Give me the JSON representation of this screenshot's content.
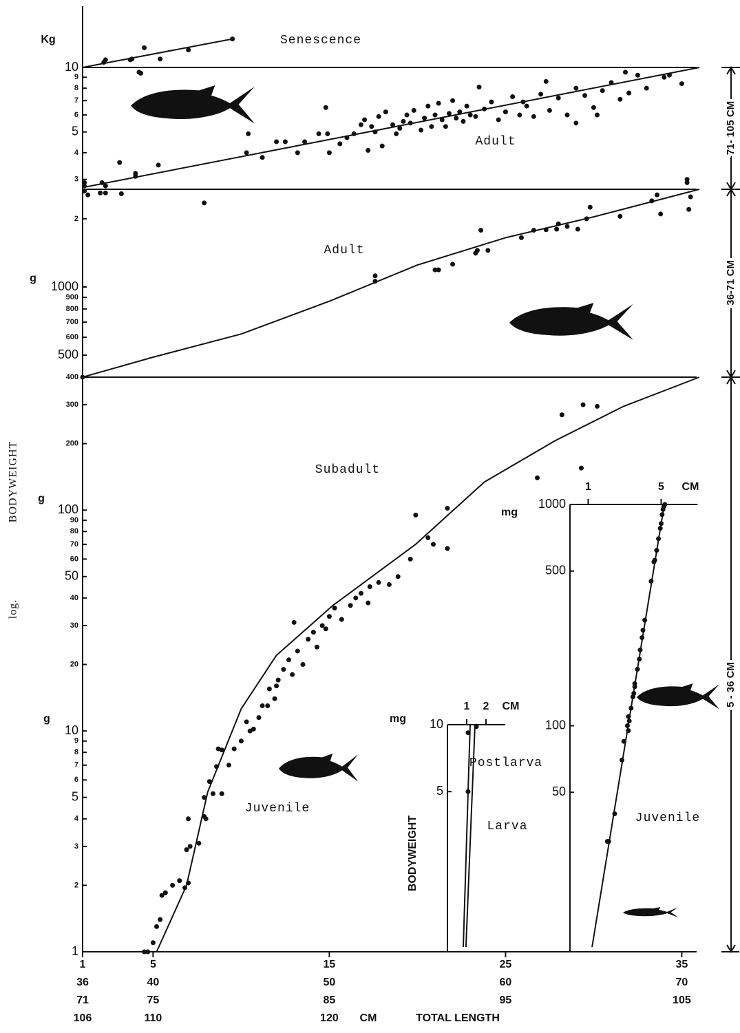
{
  "y_label": "BODYWEIGHT",
  "log_label": "log.",
  "x_axis": {
    "xlim": [
      1,
      36
    ],
    "xticks": [
      1,
      5,
      15,
      25,
      35
    ],
    "label_rows": [
      [
        36,
        40,
        50,
        60,
        70
      ],
      [
        71,
        75,
        85,
        95,
        105
      ],
      [
        106,
        110,
        120
      ]
    ],
    "unit": "CM",
    "label": "TOTAL LENGTH"
  },
  "ranges": [
    "71- 105 CM",
    "36-71 CM",
    "5 - 36 CM"
  ],
  "chart_data": [
    {
      "type": "scatter",
      "log_y": true,
      "color": "#111111",
      "ylim": [
        10,
        20
      ],
      "yticks": [],
      "labels": [
        "Senescence"
      ],
      "x": [
        2.2,
        2.3,
        3.7,
        3.8,
        4.5,
        5.4,
        7.0,
        9.5
      ],
      "y": [
        10.6,
        10.9,
        10.9,
        11.0,
        12.5,
        11.0,
        12.2,
        13.8
      ],
      "fits": [
        {
          "x": [
            1,
            9.5
          ],
          "y": [
            10,
            13.8
          ]
        }
      ]
    },
    {
      "type": "scatter",
      "log_y": true,
      "color": "#111111",
      "ylim": [
        2.7,
        10
      ],
      "yticks": [
        3,
        4,
        5,
        6,
        7,
        8,
        9,
        10
      ],
      "units": [
        "Kg"
      ],
      "labels": [
        "Adult"
      ],
      "x": [
        1.1,
        1.1,
        2.1,
        2.3,
        3.1,
        4.0,
        4.0,
        5.3,
        10.3,
        10.4,
        11.2,
        12.0,
        12.5,
        13.2,
        13.6,
        14.4,
        14.9,
        15.0,
        14.8,
        15.6,
        16.0,
        16.4,
        16.8,
        17.0,
        17.2,
        17.4,
        17.6,
        17.8,
        18.0,
        18.2,
        18.6,
        18.8,
        19.0,
        19.2,
        19.4,
        19.6,
        19.8,
        20.2,
        20.4,
        20.6,
        20.8,
        21.0,
        21.2,
        21.4,
        21.6,
        21.8,
        22.0,
        22.2,
        22.4,
        22.6,
        22.8,
        23.0,
        23.3,
        23.5,
        23.8,
        24.2,
        24.6,
        25.0,
        25.4,
        25.8,
        26.2,
        26.6,
        27.0,
        27.5,
        28.0,
        28.5,
        29.0,
        29.5,
        30.0,
        30.5,
        31.0,
        31.5,
        32.0,
        32.5,
        33.0,
        34.0,
        34.3,
        35.0,
        31.8,
        35.3,
        35.3,
        4.2,
        4.3,
        29.0,
        30.2,
        26.0,
        27.3
      ],
      "y": [
        2.9,
        2.8,
        2.9,
        2.8,
        3.6,
        3.2,
        3.1,
        3.5,
        4.0,
        4.9,
        3.8,
        4.5,
        4.5,
        4.0,
        4.5,
        4.9,
        4.9,
        4.0,
        6.5,
        4.4,
        4.7,
        4.9,
        5.4,
        5.7,
        4.1,
        5.3,
        5.0,
        5.9,
        4.3,
        6.2,
        5.4,
        4.9,
        5.2,
        5.6,
        6.0,
        5.5,
        6.3,
        5.1,
        5.8,
        6.6,
        5.3,
        6.0,
        6.8,
        5.7,
        5.3,
        6.1,
        7.0,
        5.8,
        6.2,
        5.6,
        6.6,
        6.0,
        5.9,
        8.1,
        6.4,
        6.9,
        5.7,
        6.2,
        7.3,
        6.0,
        6.6,
        5.9,
        7.5,
        6.3,
        7.2,
        6.0,
        8.0,
        7.4,
        6.5,
        7.8,
        8.5,
        7.1,
        7.6,
        9.2,
        8.0,
        9.0,
        9.2,
        8.4,
        9.5,
        2.9,
        3.0,
        9.5,
        9.4,
        5.5,
        6.0,
        6.9,
        8.6
      ],
      "fits": [
        {
          "x": [
            1,
            36
          ],
          "y": [
            2.75,
            10
          ]
        }
      ]
    },
    {
      "type": "scatter",
      "log_y": true,
      "color": "#111111",
      "ylim": [
        400,
        2700
      ],
      "yticks": [
        400,
        500,
        600,
        700,
        800,
        900,
        1000,
        {
          "value": 2000,
          "label": "2"
        }
      ],
      "units": [
        "g"
      ],
      "labels": [
        "Adult"
      ],
      "x": [
        1.1,
        1.3,
        2.0,
        2.3,
        3.2,
        7.9,
        17.6,
        17.6,
        21.0,
        21.2,
        22.0,
        23.3,
        23.4,
        23.6,
        24.0,
        25.9,
        26.6,
        27.3,
        27.9,
        28.0,
        28.5,
        29.1,
        29.6,
        29.8,
        31.5,
        33.3,
        33.6,
        33.8,
        35.4,
        35.5,
        1.0
      ],
      "y": [
        2650,
        2550,
        2600,
        2600,
        2580,
        2350,
        1120,
        1060,
        1190,
        1190,
        1260,
        1410,
        1450,
        1780,
        1450,
        1650,
        1780,
        1790,
        1800,
        1900,
        1850,
        1800,
        2000,
        2250,
        2050,
        2400,
        2550,
        2100,
        2200,
        2500,
        400
      ],
      "fits": [
        {
          "x": [
            1,
            5,
            10,
            15,
            20,
            25,
            30,
            36
          ],
          "y": [
            400,
            490,
            620,
            865,
            1250,
            1650,
            2040,
            2700
          ]
        }
      ]
    },
    {
      "type": "scatter",
      "log_y": true,
      "color": "#111111",
      "ylim": [
        1,
        400
      ],
      "yticks": [
        1,
        2,
        3,
        4,
        5,
        6,
        7,
        8,
        9,
        10,
        20,
        30,
        40,
        50,
        60,
        70,
        80,
        90,
        100,
        200,
        300
      ],
      "units": [
        "g",
        "g"
      ],
      "labels": [
        "Subadult",
        "Juvenile"
      ],
      "x": [
        4.5,
        4.7,
        5.0,
        5.2,
        5.4,
        5.5,
        5.7,
        6.1,
        6.5,
        6.8,
        7.0,
        6.9,
        7.1,
        7.0,
        7.6,
        7.9,
        8.0,
        7.9,
        8.2,
        8.4,
        8.6,
        8.9,
        8.7,
        8.9,
        9.3,
        9.6,
        10.0,
        10.3,
        10.7,
        11.0,
        11.2,
        11.6,
        11.9,
        12.1,
        12.4,
        12.7,
        12.9,
        13.2,
        13.5,
        13.8,
        14.1,
        14.3,
        14.6,
        15.0,
        15.3,
        15.7,
        16.2,
        16.8,
        17.3,
        17.8,
        18.4,
        18.9,
        19.6,
        19.9,
        20.6,
        20.9,
        21.7,
        21.7,
        26.8,
        28.2,
        29.4,
        30.2,
        29.3,
        13.0,
        14.8,
        16.5,
        12.0,
        11.5,
        10.5,
        17.2
      ],
      "y": [
        1,
        1,
        1.1,
        1.3,
        1.4,
        1.8,
        1.85,
        2.0,
        2.1,
        1.95,
        2.05,
        2.9,
        3.0,
        4.0,
        3.1,
        4.1,
        4.0,
        5.0,
        5.9,
        5.2,
        6.9,
        5.2,
        8.3,
        8.2,
        7.0,
        8.3,
        9.0,
        11,
        10.2,
        11.5,
        13,
        15.5,
        14,
        17,
        19,
        21,
        18,
        23,
        20,
        26,
        28,
        24,
        30,
        33,
        36,
        32,
        37,
        42,
        45,
        47,
        46,
        50,
        60,
        95,
        75,
        70,
        102,
        67,
        140,
        270,
        300,
        295,
        155,
        31,
        29,
        40,
        16,
        13,
        10,
        38
      ],
      "fits": [
        {
          "x": [
            5.2,
            6.9,
            8.1,
            10,
            12,
            15.2,
            19.9,
            23.8,
            27.8,
            31.7,
            36
          ],
          "y": [
            1,
            2,
            5.3,
            12.6,
            22,
            37,
            70,
            134,
            206,
            295,
            400
          ]
        }
      ]
    },
    {
      "type": "scatter",
      "log_y": true,
      "color": "#111111",
      "xlim": [
        0,
        3
      ],
      "xticks": [
        1,
        2
      ],
      "x_unit": "CM",
      "ylim": [
        1,
        10
      ],
      "yticks": [
        5,
        10
      ],
      "units": [
        "mg"
      ],
      "y_label": "BODYWEIGHT",
      "labels": [
        "Postlarva",
        "Larva"
      ],
      "x": [
        1.07,
        1.07,
        1.5
      ],
      "y": [
        9.2,
        5.0,
        9.8
      ],
      "fits": [
        {
          "x": [
            0.82,
            1.18
          ],
          "y": [
            1,
            10
          ]
        },
        {
          "x": [
            0.96,
            1.43
          ],
          "y": [
            1,
            10
          ]
        }
      ]
    },
    {
      "type": "scatter",
      "log_y": true,
      "color": "#111111",
      "xlim": [
        0,
        7
      ],
      "xticks": [
        1,
        5
      ],
      "x_unit": "CM",
      "ylim": [
        10,
        1000
      ],
      "yticks": [
        50,
        100,
        500,
        1000
      ],
      "units": [
        "mg"
      ],
      "labels": [
        "Juvenile"
      ],
      "x": [
        2.05,
        2.12,
        2.45,
        2.85,
        2.95,
        3.15,
        3.2,
        3.25,
        3.35,
        3.45,
        3.55,
        3.5,
        3.7,
        3.8,
        3.85,
        3.95,
        4.0,
        4.1,
        4.45,
        4.6,
        4.65,
        4.75,
        4.85,
        4.95,
        5.0,
        5.05,
        5.1,
        5.15,
        5.2,
        3.55,
        3.7,
        3.2
      ],
      "y": [
        30,
        30,
        40,
        70,
        85,
        100,
        95,
        105,
        120,
        135,
        150,
        140,
        180,
        200,
        220,
        250,
        270,
        300,
        450,
        550,
        560,
        620,
        700,
        780,
        820,
        900,
        950,
        980,
        1000,
        155,
        180,
        110
      ],
      "fits": [
        {
          "x": [
            1.21,
            5.17
          ],
          "y": [
            10,
            1000
          ]
        }
      ]
    }
  ]
}
